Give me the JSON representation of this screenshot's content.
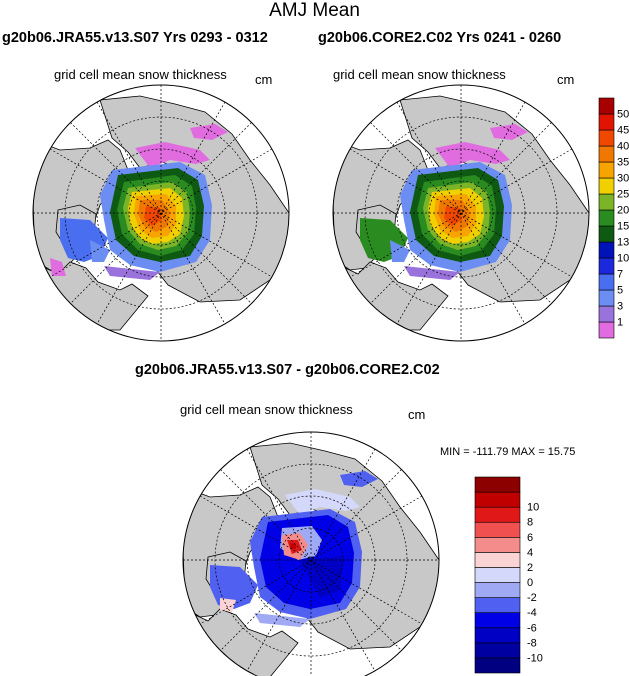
{
  "title": "AMJ Mean",
  "panels": [
    {
      "title": "g20b06.JRA55.v13.S07  Yrs 0293 - 0312",
      "subtitle": "grid cell mean snow thickness",
      "units": "cm"
    },
    {
      "title": "g20b06.CORE2.C02  Yrs 0241 - 0260",
      "subtitle": "grid cell mean snow thickness",
      "units": "cm"
    },
    {
      "title": "g20b06.JRA55.v13.S07 - g20b06.CORE2.C02",
      "subtitle": "grid cell mean snow thickness",
      "units": "cm"
    }
  ],
  "diff_stats": "MIN = -111.79 MAX =  15.75",
  "colors": {
    "land": "#c8c8c8",
    "ocean": "#ffffff"
  },
  "chart_data": [
    {
      "type": "heatmap",
      "projection": "north polar stereographic",
      "variable": "grid cell mean snow thickness",
      "units": "cm",
      "colorbar": {
        "labels": [
          "1",
          "3",
          "5",
          "7",
          "10",
          "13",
          "15",
          "20",
          "25",
          "30",
          "35",
          "40",
          "45",
          "50"
        ],
        "colors": [
          "#e06ce0",
          "#9a72dc",
          "#6c8ef2",
          "#4a6ef0",
          "#1c28dc",
          "#0012b8",
          "#0e5a12",
          "#2a8c20",
          "#7cb428",
          "#f0d000",
          "#f8a400",
          "#f07800",
          "#f04800",
          "#e01400",
          "#a80000"
        ]
      }
    },
    {
      "type": "heatmap",
      "projection": "north polar stereographic",
      "variable": "grid cell mean snow thickness difference",
      "units": "cm",
      "min": -111.79,
      "max": 15.75,
      "colorbar": {
        "labels": [
          "-10",
          "-8",
          "-6",
          "-4",
          "-2",
          "0",
          "2",
          "4",
          "6",
          "8",
          "10"
        ],
        "colors": [
          "#000080",
          "#0000a0",
          "#0000c4",
          "#0000e6",
          "#5060f0",
          "#a0aaf4",
          "#d4d8fa",
          "#fad4d4",
          "#f48c8c",
          "#f05050",
          "#e01818",
          "#c00000",
          "#8c0000"
        ]
      }
    }
  ]
}
